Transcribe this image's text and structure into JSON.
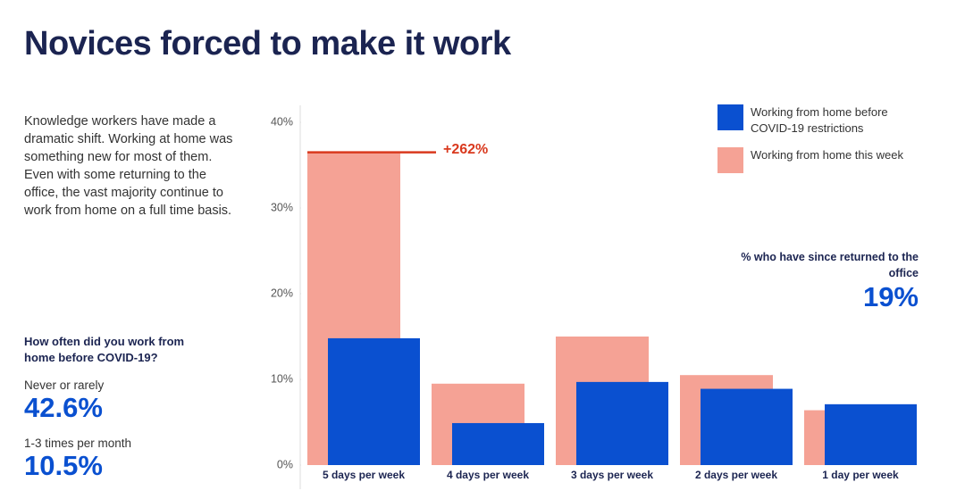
{
  "chart_data": {
    "type": "bar",
    "title": "Novices forced to make it work",
    "description": "Knowledge workers have made a dramatic shift. Working at home was something new for most of them. Even with some returning to the office, the vast majority continue to work from home on a full time basis.",
    "side_question": "How often did you work from home before COVID-19?",
    "side_stats": [
      {
        "label": "Never or rarely",
        "value": "42.6%"
      },
      {
        "label": "1-3 times per month",
        "value": "10.5%"
      }
    ],
    "categories": [
      "5 days per week",
      "4 days per week",
      "3 days per week",
      "2 days per week",
      "1 day per week"
    ],
    "series": [
      {
        "name": "Working from home this week",
        "color": "#f5a295",
        "values": [
          36.5,
          9.5,
          15,
          10.5,
          6.4
        ]
      },
      {
        "name": "Working from home before COVID-19 restrictions",
        "color": "#0a50d0",
        "values": [
          14.8,
          4.9,
          9.7,
          8.9,
          7.1
        ]
      }
    ],
    "ylim": [
      0,
      40
    ],
    "yticks": [
      {
        "value": 0,
        "label": "0%"
      },
      {
        "value": 10,
        "label": "10%"
      },
      {
        "value": 20,
        "label": "20%"
      },
      {
        "value": 30,
        "label": "30%"
      },
      {
        "value": 40,
        "label": "40%"
      }
    ],
    "grid": false,
    "change_annotation": "+262%",
    "returned_annotation": {
      "label": "% who have since returned to the office",
      "value": "19%"
    }
  }
}
